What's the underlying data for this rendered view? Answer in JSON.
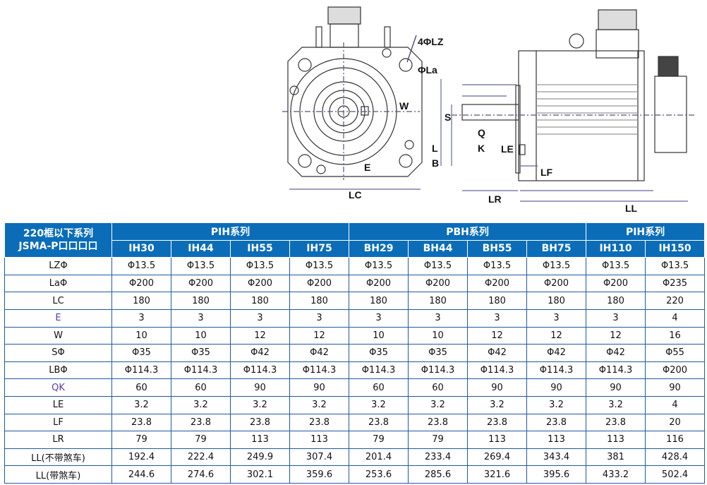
{
  "drawing": {
    "labels": {
      "lz": "4ΦLZ",
      "la": "ΦLa",
      "w": "W",
      "s": "S",
      "q": "Q",
      "k": "K",
      "le": "LE",
      "l": "L",
      "b": "B",
      "e": "E",
      "lf": "LF",
      "lc": "LC",
      "lr": "LR",
      "ll": "LL"
    }
  },
  "table": {
    "corner": [
      "220框以下系列",
      "JSMA-P口口口口"
    ],
    "groups": [
      "PIH系列",
      "PBH系列",
      "PIH系列"
    ],
    "models": [
      "IH30",
      "IH44",
      "IH55",
      "IH75",
      "BH29",
      "BH44",
      "BH55",
      "BH75",
      "IH110",
      "IH150"
    ],
    "header_color": "#0b6db8",
    "rows": [
      {
        "label": "LZΦ",
        "values": [
          "Φ13.5",
          "Φ13.5",
          "Φ13.5",
          "Φ13.5",
          "Φ13.5",
          "Φ13.5",
          "Φ13.5",
          "Φ13.5",
          "Φ13.5",
          "Φ13.5"
        ]
      },
      {
        "label": "LaΦ",
        "values": [
          "Φ200",
          "Φ200",
          "Φ200",
          "Φ200",
          "Φ200",
          "Φ200",
          "Φ200",
          "Φ200",
          "Φ200",
          "Φ235"
        ]
      },
      {
        "label": "LC",
        "values": [
          "180",
          "180",
          "180",
          "180",
          "180",
          "180",
          "180",
          "180",
          "180",
          "220"
        ]
      },
      {
        "label": "E",
        "values": [
          "3",
          "3",
          "3",
          "3",
          "3",
          "3",
          "3",
          "3",
          "3",
          "4"
        ]
      },
      {
        "label": "W",
        "values": [
          "10",
          "10",
          "12",
          "12",
          "10",
          "10",
          "12",
          "12",
          "12",
          "16"
        ]
      },
      {
        "label": "SΦ",
        "values": [
          "Φ35",
          "Φ35",
          "Φ42",
          "Φ42",
          "Φ35",
          "Φ35",
          "Φ42",
          "Φ42",
          "Φ42",
          "Φ55"
        ]
      },
      {
        "label": "LBΦ",
        "values": [
          "Φ114.3",
          "Φ114.3",
          "Φ114.3",
          "Φ114.3",
          "Φ114.3",
          "Φ114.3",
          "Φ114.3",
          "Φ114.3",
          "Φ114.3",
          "Φ200"
        ]
      },
      {
        "label": "QK",
        "values": [
          "60",
          "60",
          "90",
          "90",
          "60",
          "60",
          "90",
          "90",
          "90",
          "90"
        ]
      },
      {
        "label": "LE",
        "values": [
          "3.2",
          "3.2",
          "3.2",
          "3.2",
          "3.2",
          "3.2",
          "3.2",
          "3.2",
          "3.2",
          "4"
        ]
      },
      {
        "label": "LF",
        "values": [
          "23.8",
          "23.8",
          "23.8",
          "23.8",
          "23.8",
          "23.8",
          "23.8",
          "23.8",
          "23.8",
          "20"
        ]
      },
      {
        "label": "LR",
        "values": [
          "79",
          "79",
          "113",
          "113",
          "79",
          "79",
          "113",
          "113",
          "113",
          "116"
        ]
      },
      {
        "label": "LL(不带煞车)",
        "values": [
          "192.4",
          "222.4",
          "249.9",
          "307.4",
          "201.4",
          "233.4",
          "269.4",
          "343.4",
          "381",
          "428.4"
        ]
      },
      {
        "label": "LL(带煞车)",
        "values": [
          "244.6",
          "274.6",
          "302.1",
          "359.6",
          "253.6",
          "285.6",
          "321.6",
          "395.6",
          "433.2",
          "502.4"
        ]
      }
    ]
  }
}
